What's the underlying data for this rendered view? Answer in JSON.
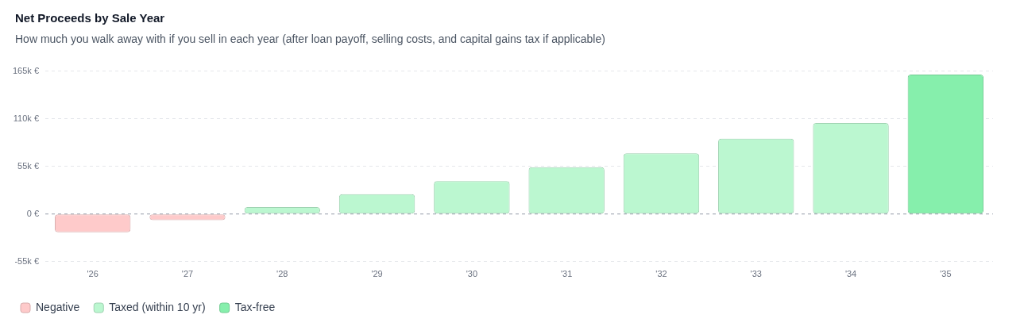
{
  "chart_data": {
    "type": "bar",
    "title": "Net Proceeds by Sale Year",
    "subtitle": "How much you walk away with if you sell in each year (after loan payoff, selling costs, and capital gains tax if applicable)",
    "categories": [
      "'26",
      "'27",
      "'28",
      "'29",
      "'30",
      "'31",
      "'32",
      "'33",
      "'34",
      "'35"
    ],
    "series": [
      {
        "name": "Negative",
        "color": "#fecaca",
        "values": [
          -21,
          -7,
          null,
          null,
          null,
          null,
          null,
          null,
          null,
          null
        ]
      },
      {
        "name": "Taxed (within 10 yr)",
        "color": "#bbf7d0",
        "values": [
          null,
          null,
          8,
          23,
          38,
          54,
          70,
          87,
          105,
          null
        ]
      },
      {
        "name": "Tax-free",
        "color": "#86efac",
        "values": [
          null,
          null,
          null,
          null,
          null,
          null,
          null,
          null,
          null,
          161
        ]
      }
    ],
    "ylim": [
      -55,
      165
    ],
    "yticks": [
      {
        "value": -55,
        "label": "-55k €"
      },
      {
        "value": 0,
        "label": "0 €"
      },
      {
        "value": 55,
        "label": "55k €"
      },
      {
        "value": 110,
        "label": "110k €"
      },
      {
        "value": 165,
        "label": "165k €"
      }
    ],
    "ref_lines": [
      {
        "axis": "y",
        "value": 0,
        "color": "#9ca3af",
        "line_style": "dashed"
      }
    ],
    "grid": "y",
    "legend": "bottom left"
  }
}
